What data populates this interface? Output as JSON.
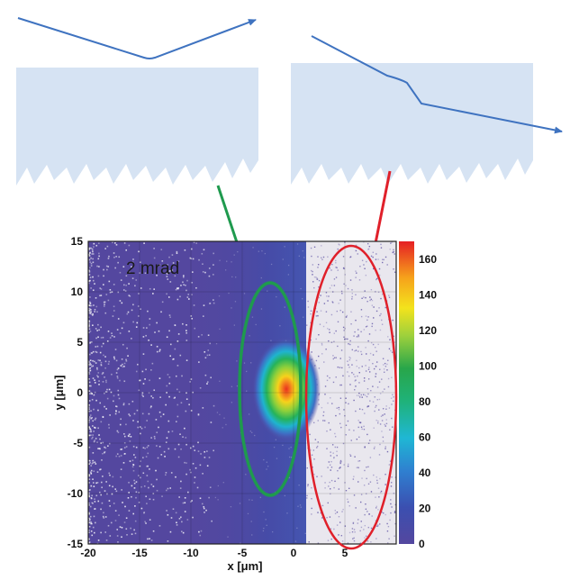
{
  "colors": {
    "crystal_fill": "#d6e3f3",
    "trajectory": "#3f73c0",
    "green_ellipse": "#1f9a4e",
    "red_ellipse": "#e0202a",
    "plot_background": "#54479f",
    "amorphous_region": "#e9e7ee"
  },
  "chart_data": {
    "type": "heatmap",
    "annotation": "2 mrad",
    "xlabel": "x [μm]",
    "ylabel": "y [μm]",
    "xlim": [
      -20,
      10
    ],
    "ylim": [
      -15,
      15
    ],
    "x_ticks": [
      "-20",
      "-15",
      "-10",
      "-5",
      "0",
      "5"
    ],
    "y_ticks": [
      "15",
      "10",
      "5",
      "0",
      "-5",
      "-10",
      "-15"
    ],
    "colorbar_ticks": [
      "160",
      "140",
      "120",
      "100",
      "80",
      "60",
      "40",
      "20",
      "0"
    ],
    "colorbar_range": [
      0,
      170
    ],
    "peak_center": [
      -2,
      0
    ]
  }
}
